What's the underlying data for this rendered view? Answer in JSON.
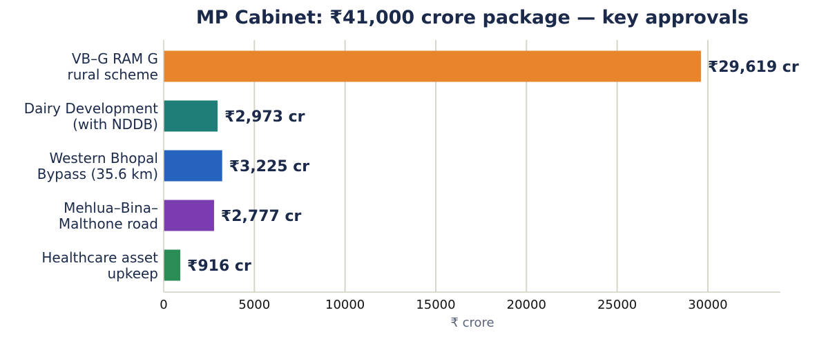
{
  "chart_data": {
    "type": "bar",
    "orientation": "horizontal",
    "title": "MP Cabinet: ₹41,000 crore package — key approvals",
    "xlabel": "₹ crore",
    "ylabel": "",
    "xlim": [
      0,
      34000
    ],
    "xticks": [
      0,
      5000,
      10000,
      15000,
      20000,
      25000,
      30000
    ],
    "grid": true,
    "categories": [
      [
        "VB–G RAM G",
        "rural scheme"
      ],
      [
        "Dairy Development",
        "(with NDDB)"
      ],
      [
        "Western Bhopal",
        "Bypass (35.6 km)"
      ],
      [
        "Mehlua–Bina–",
        "Malthone road"
      ],
      [
        "Healthcare asset",
        "upkeep"
      ]
    ],
    "values": [
      29619,
      2973,
      3225,
      2777,
      916
    ],
    "data_labels": [
      "₹29,619 cr",
      "₹2,973 cr",
      "₹3,225 cr",
      "₹2,777 cr",
      "₹916 cr"
    ],
    "colors": [
      "#e8852c",
      "#1f7e78",
      "#2563be",
      "#7b3cb0",
      "#2c8c55"
    ]
  }
}
